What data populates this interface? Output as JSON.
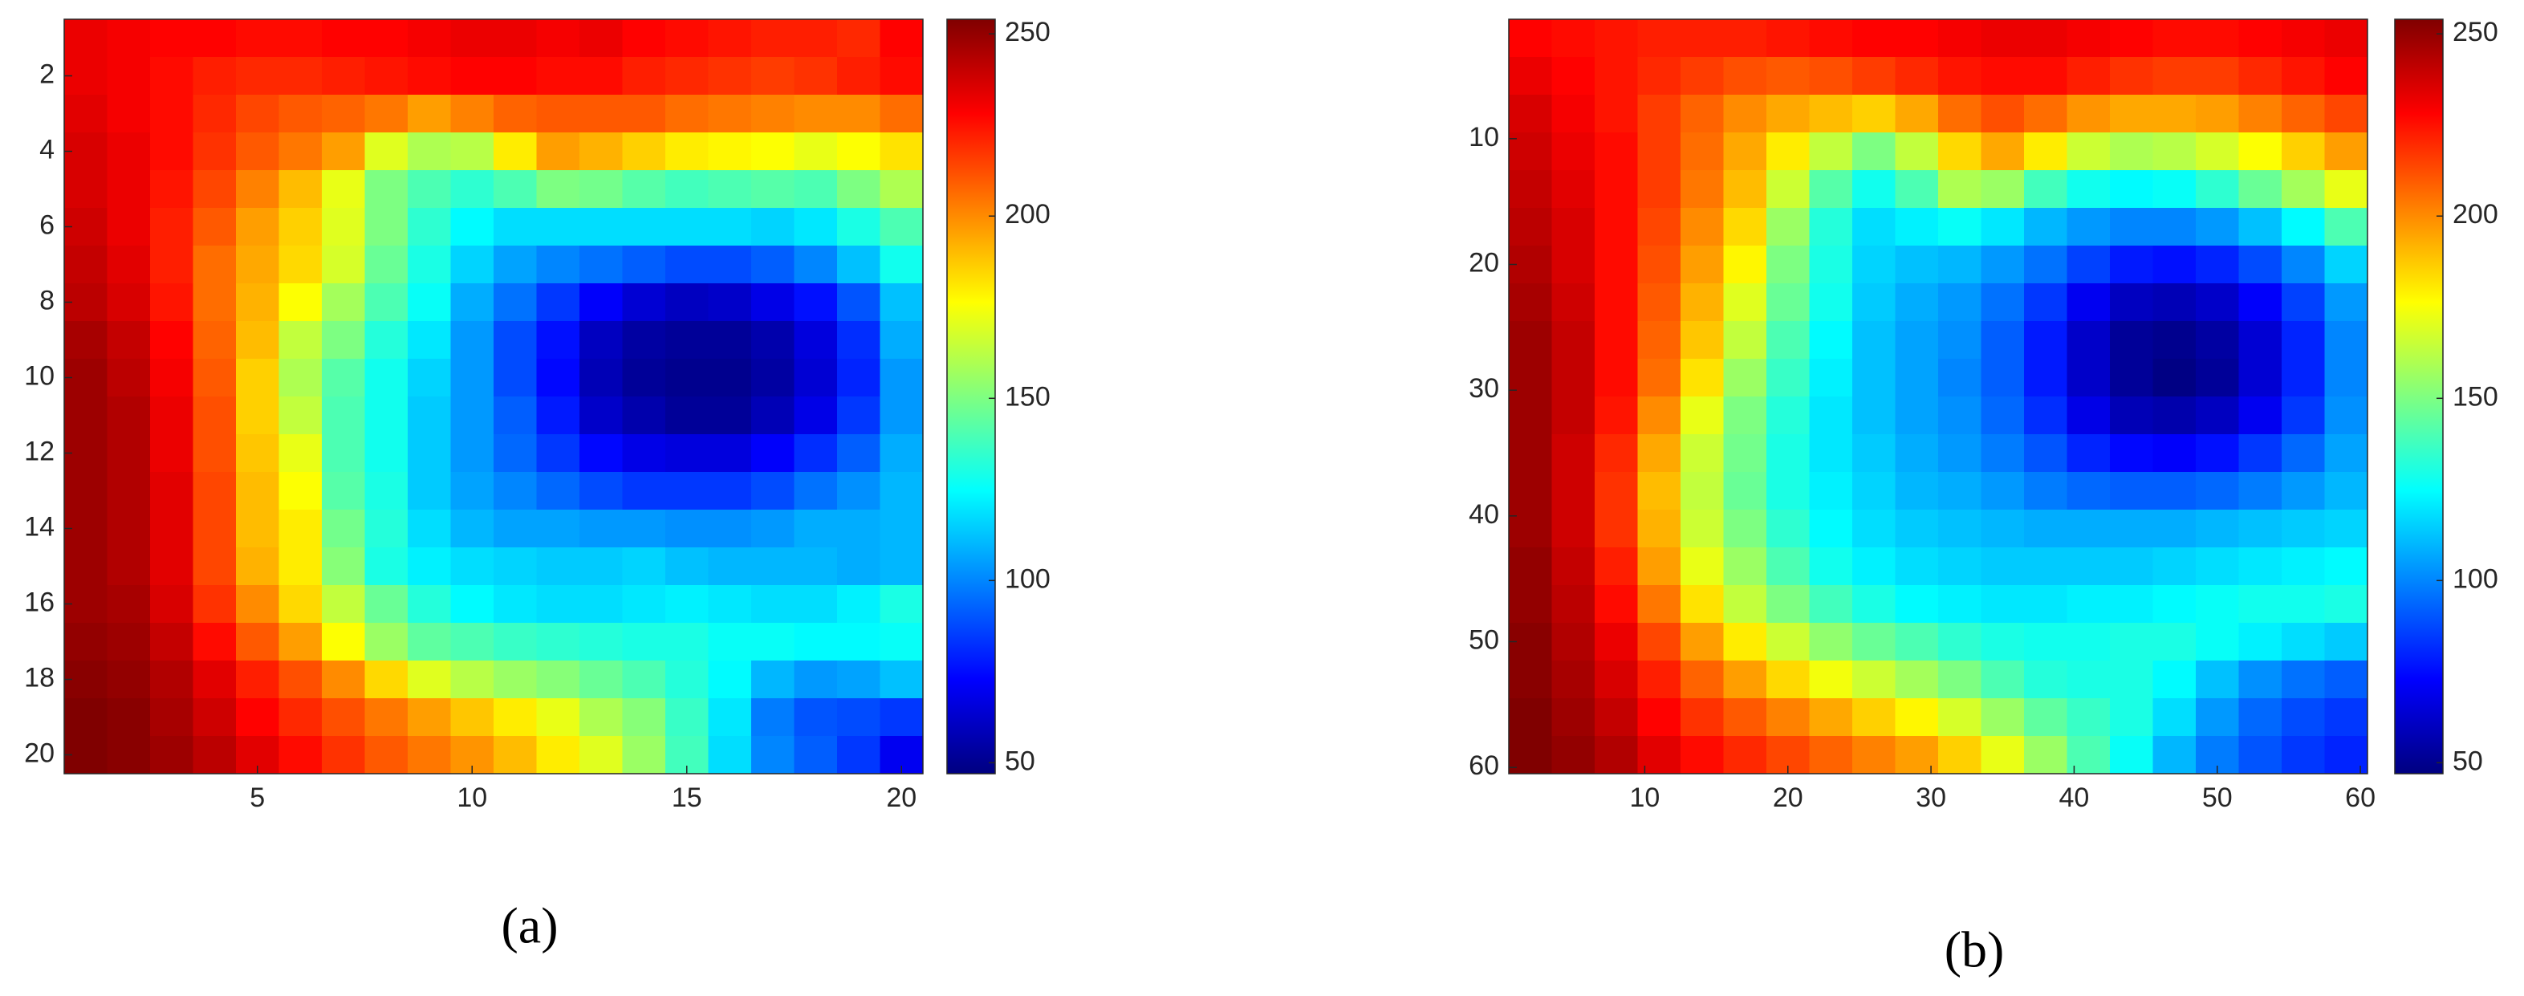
{
  "chart_data": [
    {
      "type": "heatmap",
      "caption": "(a)",
      "colormap": "jet",
      "x": [
        1,
        2,
        3,
        4,
        5,
        6,
        7,
        8,
        9,
        10,
        11,
        12,
        13,
        14,
        15,
        16,
        17,
        18,
        19,
        20
      ],
      "y": [
        1,
        2,
        3,
        4,
        5,
        6,
        7,
        8,
        9,
        10,
        11,
        12,
        13,
        14,
        15,
        16,
        17,
        18,
        19,
        20
      ],
      "values": [
        [
          232,
          230,
          228,
          228,
          226,
          226,
          228,
          228,
          230,
          232,
          232,
          230,
          232,
          228,
          226,
          224,
          222,
          222,
          220,
          228
        ],
        [
          232,
          230,
          226,
          222,
          220,
          220,
          222,
          224,
          226,
          228,
          228,
          226,
          226,
          222,
          220,
          218,
          216,
          218,
          222,
          226
        ],
        [
          234,
          230,
          226,
          220,
          214,
          210,
          208,
          204,
          196,
          202,
          208,
          210,
          210,
          210,
          206,
          204,
          202,
          200,
          200,
          206
        ],
        [
          236,
          232,
          226,
          218,
          210,
          204,
          196,
          170,
          160,
          162,
          180,
          196,
          192,
          186,
          180,
          178,
          176,
          172,
          176,
          182
        ],
        [
          236,
          232,
          224,
          214,
          202,
          190,
          172,
          150,
          140,
          134,
          140,
          150,
          148,
          142,
          138,
          140,
          142,
          140,
          150,
          160
        ],
        [
          238,
          232,
          222,
          210,
          196,
          186,
          170,
          150,
          134,
          124,
          118,
          118,
          118,
          118,
          118,
          118,
          116,
          120,
          130,
          140
        ],
        [
          240,
          234,
          222,
          206,
          194,
          184,
          168,
          146,
          130,
          116,
          106,
          100,
          96,
          92,
          88,
          88,
          92,
          100,
          112,
          128
        ],
        [
          242,
          236,
          224,
          206,
          192,
          176,
          158,
          140,
          126,
          108,
          96,
          84,
          72,
          64,
          60,
          62,
          68,
          76,
          90,
          112
        ],
        [
          246,
          240,
          228,
          208,
          190,
          164,
          150,
          132,
          120,
          104,
          88,
          76,
          60,
          54,
          52,
          52,
          56,
          66,
          82,
          108
        ],
        [
          248,
          242,
          230,
          210,
          186,
          160,
          142,
          128,
          116,
          104,
          88,
          74,
          58,
          52,
          50,
          50,
          54,
          64,
          80,
          104
        ],
        [
          248,
          244,
          232,
          212,
          186,
          164,
          140,
          128,
          114,
          104,
          92,
          78,
          62,
          56,
          52,
          52,
          58,
          68,
          84,
          104
        ],
        [
          248,
          244,
          232,
          212,
          188,
          172,
          140,
          128,
          114,
          104,
          94,
          84,
          74,
          68,
          66,
          66,
          72,
          82,
          92,
          108
        ],
        [
          248,
          244,
          234,
          214,
          190,
          176,
          142,
          130,
          114,
          106,
          100,
          94,
          88,
          84,
          84,
          84,
          88,
          96,
          102,
          110
        ],
        [
          248,
          244,
          234,
          214,
          190,
          180,
          148,
          132,
          118,
          110,
          106,
          106,
          104,
          104,
          102,
          102,
          104,
          108,
          108,
          110
        ],
        [
          248,
          244,
          234,
          214,
          192,
          180,
          152,
          130,
          122,
          118,
          116,
          114,
          114,
          116,
          112,
          110,
          110,
          110,
          108,
          110
        ],
        [
          248,
          246,
          236,
          218,
          200,
          184,
          164,
          146,
          132,
          124,
          120,
          118,
          118,
          120,
          122,
          120,
          118,
          118,
          122,
          130
        ],
        [
          250,
          248,
          240,
          226,
          210,
          196,
          176,
          156,
          144,
          140,
          136,
          134,
          132,
          130,
          130,
          126,
          126,
          124,
          124,
          126
        ],
        [
          252,
          250,
          244,
          234,
          222,
          212,
          200,
          184,
          170,
          162,
          156,
          152,
          146,
          140,
          132,
          124,
          110,
          104,
          106,
          112
        ],
        [
          254,
          252,
          246,
          238,
          228,
          220,
          212,
          204,
          196,
          188,
          180,
          172,
          160,
          152,
          136,
          120,
          98,
          90,
          88,
          84
        ],
        [
          254,
          252,
          248,
          242,
          234,
          226,
          218,
          210,
          204,
          198,
          190,
          180,
          170,
          156,
          138,
          118,
          100,
          92,
          84,
          70
        ]
      ],
      "xlim": [
        0.5,
        20.5
      ],
      "ylim": [
        0.5,
        20.5
      ],
      "y_reversed": true,
      "xticks": [
        5,
        10,
        15,
        20
      ],
      "yticks": [
        2,
        4,
        6,
        8,
        10,
        12,
        14,
        16,
        18,
        20
      ],
      "clim": [
        47,
        254
      ],
      "cticks": [
        50,
        100,
        150,
        200,
        250
      ]
    },
    {
      "type": "heatmap",
      "caption": "(b)",
      "colormap": "jet",
      "x": [
        2,
        5,
        8,
        11,
        14,
        17,
        20,
        23,
        26,
        29,
        32,
        35,
        38,
        41,
        44,
        47,
        50,
        53,
        56,
        59
      ],
      "y": [
        2,
        5,
        8,
        11,
        14,
        17,
        20,
        23,
        26,
        29,
        32,
        35,
        38,
        41,
        44,
        47,
        50,
        53,
        56,
        59
      ],
      "values": [
        [
          228,
          226,
          224,
          222,
          222,
          222,
          224,
          226,
          228,
          228,
          230,
          232,
          232,
          230,
          228,
          226,
          226,
          228,
          230,
          232
        ],
        [
          232,
          228,
          224,
          220,
          216,
          212,
          210,
          212,
          216,
          220,
          224,
          226,
          226,
          222,
          218,
          216,
          216,
          220,
          224,
          228
        ],
        [
          236,
          230,
          224,
          216,
          208,
          200,
          194,
          190,
          186,
          194,
          206,
          212,
          206,
          198,
          194,
          194,
          196,
          202,
          208,
          214
        ],
        [
          238,
          232,
          226,
          216,
          206,
          194,
          180,
          164,
          150,
          164,
          184,
          194,
          180,
          166,
          160,
          162,
          168,
          176,
          186,
          196
        ],
        [
          240,
          234,
          226,
          216,
          204,
          190,
          166,
          142,
          128,
          140,
          160,
          156,
          138,
          128,
          124,
          126,
          134,
          146,
          158,
          172
        ],
        [
          242,
          236,
          226,
          214,
          200,
          184,
          156,
          132,
          118,
          122,
          126,
          120,
          110,
          104,
          100,
          100,
          104,
          112,
          124,
          140
        ],
        [
          244,
          236,
          226,
          212,
          196,
          178,
          150,
          130,
          116,
          112,
          110,
          104,
          96,
          86,
          78,
          76,
          80,
          88,
          100,
          116
        ],
        [
          246,
          238,
          226,
          210,
          192,
          170,
          146,
          128,
          114,
          108,
          104,
          96,
          84,
          70,
          60,
          58,
          62,
          72,
          86,
          104
        ],
        [
          248,
          240,
          226,
          208,
          188,
          164,
          140,
          124,
          112,
          106,
          102,
          92,
          78,
          62,
          52,
          50,
          54,
          64,
          80,
          100
        ],
        [
          248,
          240,
          226,
          206,
          182,
          156,
          136,
          122,
          112,
          106,
          100,
          92,
          78,
          62,
          52,
          48,
          52,
          64,
          80,
          100
        ],
        [
          248,
          240,
          224,
          200,
          172,
          150,
          132,
          120,
          112,
          106,
          102,
          94,
          82,
          68,
          58,
          56,
          60,
          70,
          84,
          102
        ],
        [
          248,
          238,
          220,
          194,
          166,
          148,
          130,
          120,
          114,
          108,
          104,
          98,
          90,
          80,
          74,
          72,
          76,
          84,
          94,
          106
        ],
        [
          248,
          238,
          218,
          190,
          164,
          146,
          130,
          122,
          116,
          110,
          108,
          104,
          98,
          94,
          92,
          92,
          94,
          98,
          104,
          110
        ],
        [
          248,
          238,
          218,
          192,
          166,
          150,
          134,
          124,
          118,
          114,
          112,
          110,
          108,
          108,
          108,
          108,
          110,
          112,
          114,
          116
        ],
        [
          250,
          240,
          222,
          196,
          172,
          156,
          140,
          128,
          122,
          118,
          116,
          114,
          114,
          114,
          114,
          116,
          118,
          120,
          122,
          124
        ],
        [
          250,
          242,
          226,
          204,
          182,
          164,
          150,
          138,
          130,
          124,
          122,
          120,
          120,
          122,
          122,
          124,
          126,
          128,
          128,
          130
        ],
        [
          252,
          244,
          232,
          214,
          196,
          180,
          166,
          154,
          146,
          140,
          134,
          130,
          128,
          128,
          130,
          130,
          126,
          122,
          118,
          114
        ],
        [
          252,
          246,
          236,
          222,
          208,
          196,
          184,
          174,
          166,
          158,
          150,
          140,
          132,
          130,
          130,
          124,
          112,
          102,
          96,
          92
        ],
        [
          254,
          248,
          240,
          228,
          218,
          210,
          202,
          194,
          186,
          178,
          168,
          156,
          144,
          136,
          130,
          118,
          104,
          94,
          88,
          84
        ],
        [
          254,
          250,
          244,
          234,
          226,
          220,
          214,
          208,
          202,
          196,
          186,
          172,
          156,
          140,
          126,
          110,
          98,
          90,
          84,
          80
        ]
      ],
      "xlim": [
        0.5,
        60.5
      ],
      "ylim": [
        0.5,
        60.5
      ],
      "y_reversed": true,
      "xticks": [
        10,
        20,
        30,
        40,
        50,
        60
      ],
      "yticks": [
        10,
        20,
        30,
        40,
        50,
        60
      ],
      "clim": [
        47,
        254
      ],
      "cticks": [
        50,
        100,
        150,
        200,
        250
      ]
    }
  ]
}
